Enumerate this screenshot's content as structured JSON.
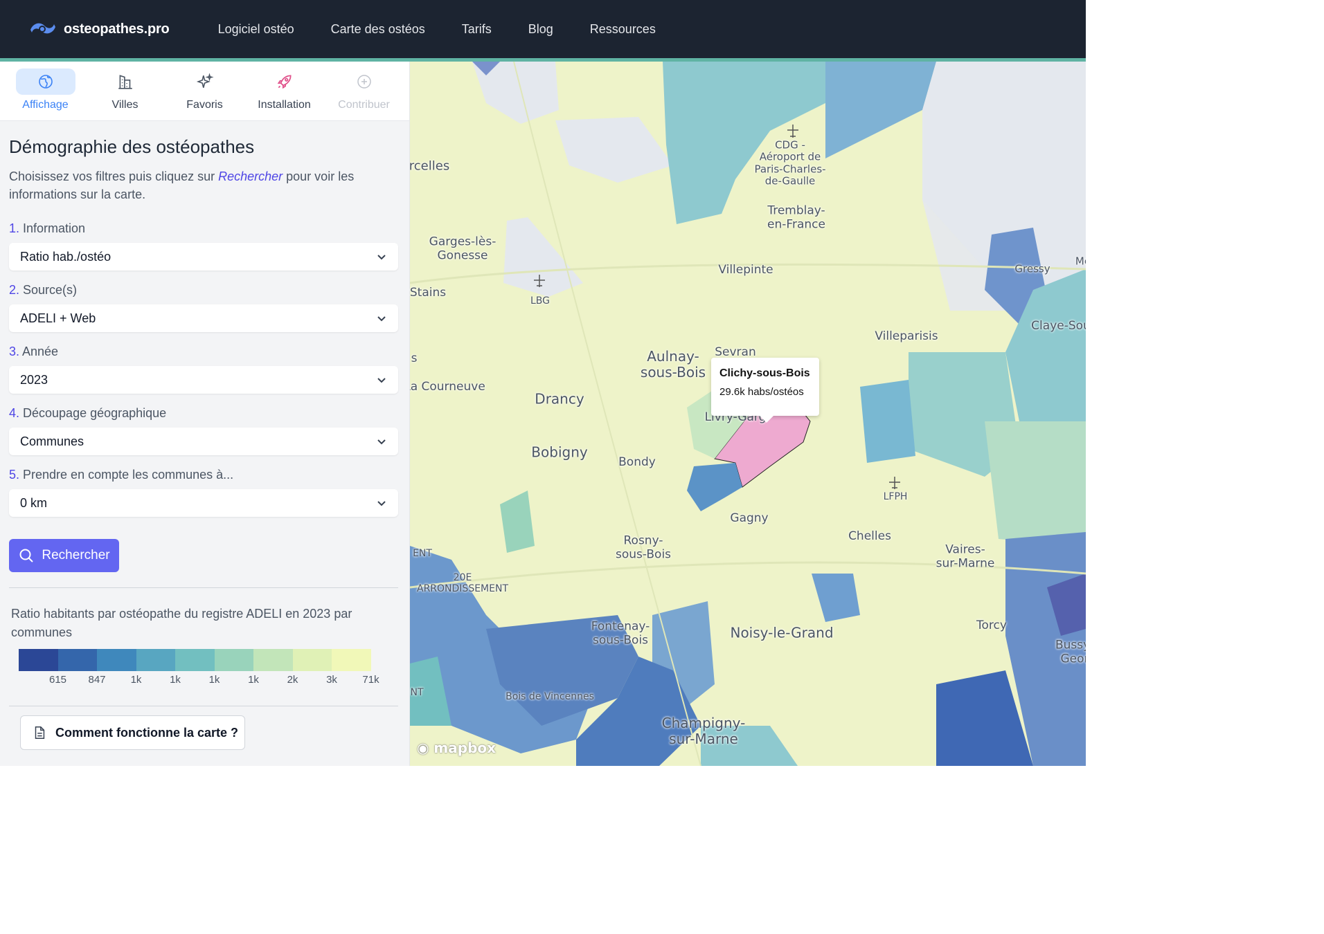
{
  "brand": {
    "name": "osteopathes.pro"
  },
  "nav": [
    "Logiciel ostéo",
    "Carte des ostéos",
    "Tarifs",
    "Blog",
    "Ressources"
  ],
  "tabs": [
    {
      "label": "Affichage",
      "icon": "globe-icon",
      "active": true
    },
    {
      "label": "Villes",
      "icon": "buildings-icon"
    },
    {
      "label": "Favoris",
      "icon": "sparkles-icon"
    },
    {
      "label": "Installation",
      "icon": "rocket-icon"
    },
    {
      "label": "Contribuer",
      "icon": "plus-circle-icon",
      "disabled": true
    }
  ],
  "panel": {
    "title": "Démographie des ostéopathes",
    "desc_before": "Choisissez vos filtres puis cliquez sur ",
    "desc_link": "Rechercher",
    "desc_after": " pour voir les informations sur la carte.",
    "fields": [
      {
        "num": "1.",
        "label": " Information",
        "value": "Ratio hab./ostéo"
      },
      {
        "num": "2.",
        "label": " Source(s)",
        "value": "ADELI + Web"
      },
      {
        "num": "3.",
        "label": " Année",
        "value": "2023"
      },
      {
        "num": "4.",
        "label": " Découpage géographique",
        "value": "Communes"
      },
      {
        "num": "5.",
        "label": " Prendre en compte les communes à...",
        "value": "0 km"
      }
    ],
    "search_label": "Rechercher"
  },
  "legend": {
    "title": "Ratio habitants par ostéopathe du registre ADELI en 2023 par communes",
    "colors": [
      "#2b4796",
      "#3466ab",
      "#3f88bc",
      "#58a6c1",
      "#72bfc0",
      "#99d3bb",
      "#c2e5b9",
      "#e0f1b6",
      "#f1f8b8"
    ],
    "ticks": [
      "615",
      "847",
      "1k",
      "1k",
      "1k",
      "1k",
      "2k",
      "3k",
      "71k"
    ]
  },
  "help_label": "Comment fonctionne la carte ?",
  "map": {
    "labels": [
      {
        "text": "rcelles"
      },
      {
        "text": "CDG -\nAéroport de\nParis-Charles-\nde-Gaulle"
      },
      {
        "text": "Tremblay-\nen-France"
      },
      {
        "text": "Garges-lès-\nGonesse"
      },
      {
        "text": "Villepinte"
      },
      {
        "text": "Gressy"
      },
      {
        "text": "Stains"
      },
      {
        "text": "LBG"
      },
      {
        "text": "Villeparisis"
      },
      {
        "text": "Claye-Sou"
      },
      {
        "text": "Aulnay-\nsous-Bois"
      },
      {
        "text": "Sevran"
      },
      {
        "text": "La Courneuve"
      },
      {
        "text": "Drancy"
      },
      {
        "text": "Livry-Garg"
      },
      {
        "text": "Bobigny"
      },
      {
        "text": "Bondy"
      },
      {
        "text": "LFPH"
      },
      {
        "text": "Gagny"
      },
      {
        "text": "Chelles"
      },
      {
        "text": "Rosny-\nsous-Bois"
      },
      {
        "text": "Vaires-\nsur-Marne"
      },
      {
        "text": "ENT"
      },
      {
        "text": "20E\nARRONDISSEMENT"
      },
      {
        "text": "Fontenay-\nsous-Bois"
      },
      {
        "text": "Noisy-le-Grand"
      },
      {
        "text": "Torcy"
      },
      {
        "text": "Bussy-\nGeor"
      },
      {
        "text": "Bois de Vincennes"
      },
      {
        "text": "NT"
      },
      {
        "text": "Champigny-\nsur-Marne"
      },
      {
        "text": "Me"
      },
      {
        "text": "s"
      }
    ],
    "tooltip": {
      "city": "Clichy-sous-Bois",
      "value": "29.6k habs/ostéos"
    },
    "attribution": "mapbox"
  }
}
